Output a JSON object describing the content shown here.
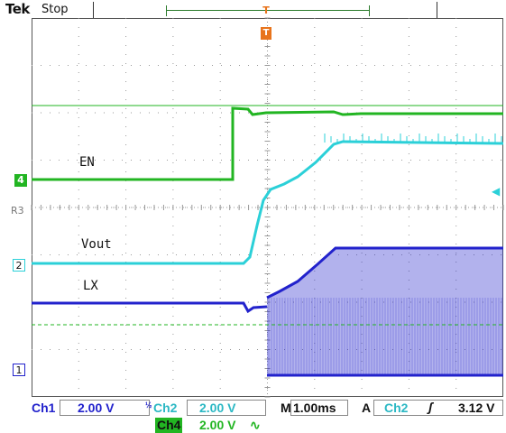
{
  "header": {
    "brand": "Tek",
    "status": "Stop",
    "trigger_marker": "T"
  },
  "channels": {
    "ch4_marker": "4",
    "ch2_marker": "2",
    "ch1_marker": "1",
    "ref_label": "R3"
  },
  "trace_labels": {
    "en": "EN",
    "vout": "Vout",
    "lx": "LX"
  },
  "readout": {
    "ch1_name": "Ch1",
    "ch1_scale": "2.00 V",
    "ch2_prefix": "½",
    "ch2_name": "Ch2",
    "ch2_scale": "2.00 V",
    "ch4_name": "Ch4",
    "ch4_scale": "2.00 V",
    "ch4_suffix": "∿",
    "time_prefix": "M",
    "time_scale": "1.00ms",
    "trigger_mode": "A",
    "trigger_source": "Ch2",
    "trigger_slope": "ʃ",
    "trigger_level": "3.12 V"
  },
  "colors": {
    "ch1": "#2222cc",
    "ch2": "#2bd0d8",
    "ch4": "#22b522",
    "trigger": "#e8741c",
    "grid": "#999999"
  }
}
